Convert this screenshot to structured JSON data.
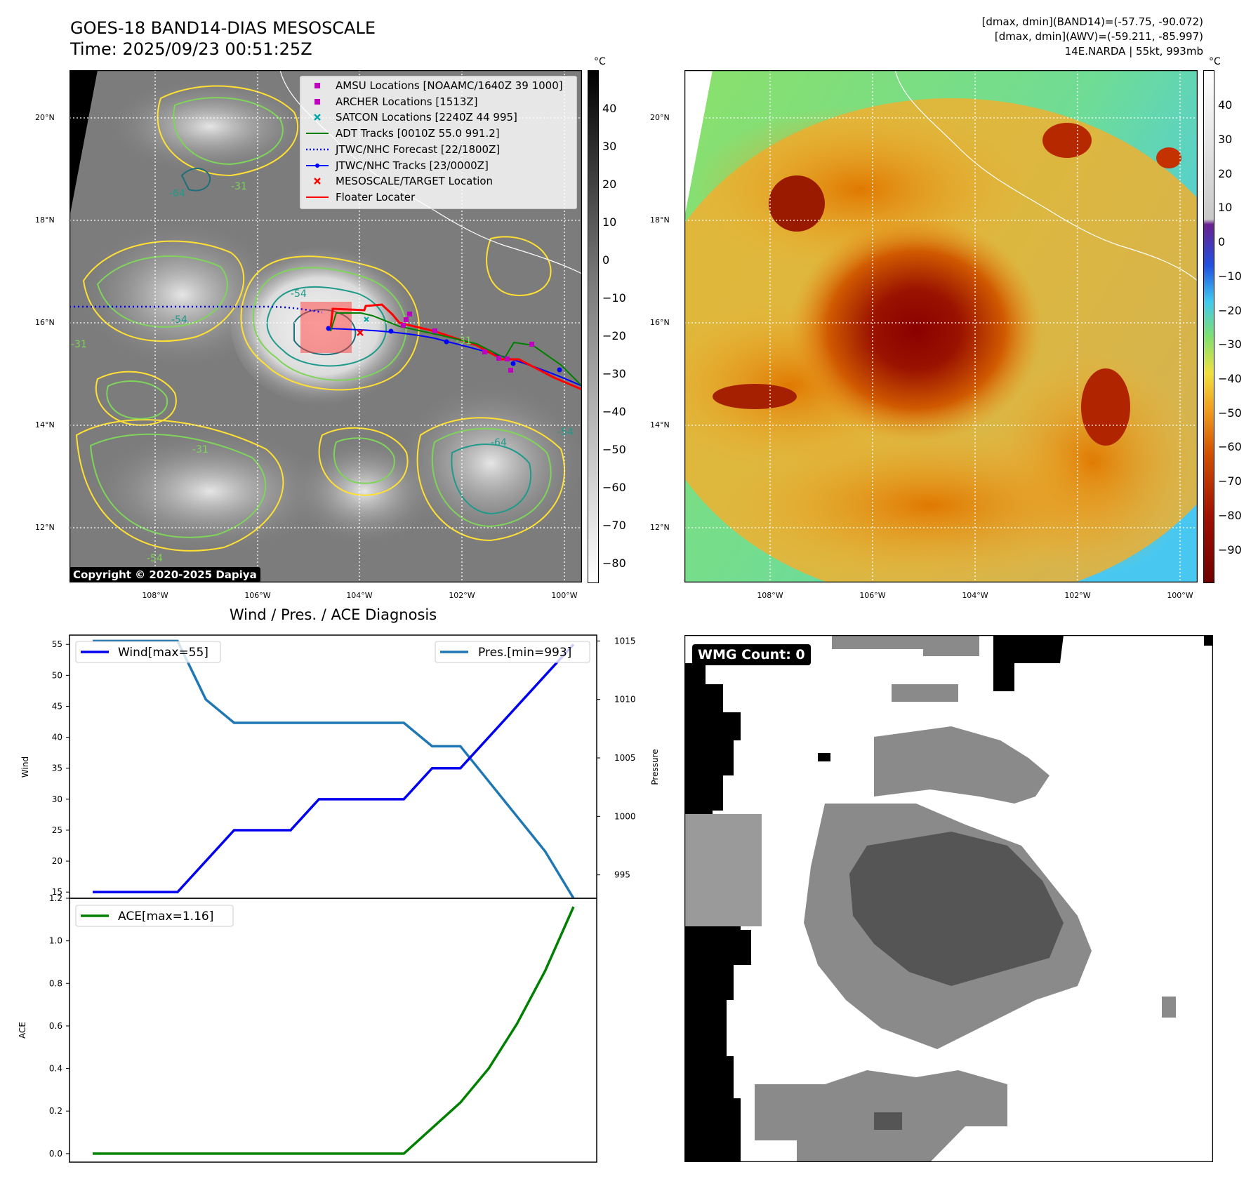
{
  "header": {
    "title_line1": "GOES-18 BAND14-DIAS MESOSCALE",
    "title_line2": "Time: 2025/09/23 00:51:25Z",
    "stats_line1": "[dmax, dmin](BAND14)=(-57.75, -90.072)",
    "stats_line2": "[dmax, dmin](AWV)=(-59.211, -85.997)",
    "stats_line3": "14E.NARDA | 55kt, 993mb"
  },
  "map_axes": {
    "lat_labels": [
      "20°N",
      "18°N",
      "16°N",
      "14°N",
      "12°N"
    ],
    "lon_labels": [
      "108°W",
      "106°W",
      "104°W",
      "102°W",
      "100°W"
    ]
  },
  "ir_panel": {
    "colorbar_unit": "°C",
    "colorbar_ticks": [
      "40",
      "30",
      "20",
      "10",
      "0",
      "−10",
      "−20",
      "−30",
      "−40",
      "−50",
      "−60",
      "−70",
      "−80"
    ],
    "contour_labels": [
      "-54",
      "-31",
      "-64",
      "-31",
      "-54",
      "-31",
      "-64",
      "-54",
      "-31",
      "-54"
    ],
    "copyright": "Copyright © 2020-2025 Dapiya",
    "legend": [
      {
        "label": "AMSU Locations [NOAAMC/1640Z 39 1000]",
        "color": "#c000c0",
        "marker": "square"
      },
      {
        "label": "ARCHER Locations [1513Z]",
        "color": "#c000c0",
        "marker": "square"
      },
      {
        "label": "SATCON Locations [2240Z 44 995]",
        "color": "#00a8a8",
        "marker": "x"
      },
      {
        "label": "ADT Tracks [0010Z 55.0 991.2]",
        "color": "#008000",
        "marker": "line"
      },
      {
        "label": "JTWC/NHC Forecast [22/1800Z]",
        "color": "#0000ff",
        "marker": "dotted"
      },
      {
        "label": "JTWC/NHC Tracks [23/0000Z]",
        "color": "#0000ff",
        "marker": "line-dot"
      },
      {
        "label": "MESOSCALE/TARGET Location",
        "color": "#ff0000",
        "marker": "x"
      },
      {
        "label": "Floater Locater",
        "color": "#ff0000",
        "marker": "line"
      }
    ]
  },
  "awv_panel": {
    "colorbar_unit": "°C",
    "colorbar_ticks": [
      "40",
      "30",
      "20",
      "10",
      "0",
      "−10",
      "−20",
      "−30",
      "−40",
      "−50",
      "−60",
      "−70",
      "−80",
      "−90"
    ]
  },
  "wmg_panel": {
    "label": "WMG Count: 0"
  },
  "chart_data": [
    {
      "type": "line",
      "title": "Wind / Pres. / ACE Diagnosis",
      "ylabel": "Wind",
      "y2label": "Pressure",
      "ylim": [
        14,
        56.5
      ],
      "y2lim": [
        993,
        1015.5
      ],
      "yticks": [
        "55",
        "50",
        "45",
        "40",
        "35",
        "30",
        "25",
        "20",
        "15"
      ],
      "y2ticks": [
        "1015",
        "1010",
        "1005",
        "1000",
        "995"
      ],
      "x": [
        0,
        1,
        2,
        3,
        4,
        5,
        6,
        7,
        8,
        9,
        10,
        11,
        12,
        13,
        14,
        15,
        16,
        17
      ],
      "series": [
        {
          "name": "Wind[max=55]",
          "color": "#0000ee",
          "values": [
            15,
            15,
            15,
            15,
            20,
            25,
            25,
            25,
            30,
            30,
            30,
            30,
            35,
            35,
            40,
            45,
            50,
            55
          ]
        },
        {
          "name": "Pres.[min=993]",
          "color": "#1f77b4",
          "axis": "right",
          "values": [
            1015,
            1015,
            1015,
            1015,
            1010,
            1008,
            1008,
            1008,
            1008,
            1008,
            1008,
            1008,
            1006,
            1006,
            1003,
            1000,
            997,
            993
          ]
        }
      ]
    },
    {
      "type": "line",
      "ylabel": "ACE",
      "ylim": [
        -0.04,
        1.2
      ],
      "yticks": [
        "1.2",
        "1.0",
        "0.8",
        "0.6",
        "0.4",
        "0.2",
        "0.0"
      ],
      "x": [
        0,
        1,
        2,
        3,
        4,
        5,
        6,
        7,
        8,
        9,
        10,
        11,
        12,
        13,
        14,
        15,
        16,
        17
      ],
      "series": [
        {
          "name": "ACE[max=1.16]",
          "color": "#008000",
          "values": [
            0,
            0,
            0,
            0,
            0,
            0,
            0,
            0,
            0,
            0,
            0,
            0,
            0.12,
            0.24,
            0.4,
            0.61,
            0.86,
            1.16
          ]
        }
      ]
    }
  ]
}
